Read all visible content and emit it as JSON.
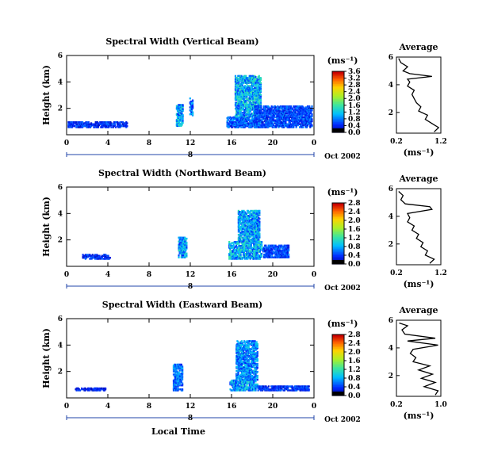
{
  "xlabel": "Local Time",
  "date_label": "Oct 2002",
  "colorbar_unit": "(ms⁻¹)",
  "avg_title": "Average",
  "avg_xlabel": "(ms⁻¹)",
  "chart_data": [
    {
      "type": "heatmap",
      "title": "Spectral Width (Vertical Beam)",
      "xlabel": "",
      "ylabel": "Height (km)",
      "xlim": [
        0,
        24
      ],
      "ylim": [
        0,
        6
      ],
      "x_ticks": [
        "0",
        "4",
        "8",
        "12",
        "16",
        "20",
        "0"
      ],
      "y_ticks": [
        "2",
        "4",
        "6"
      ],
      "day_label": "8",
      "colorbar": {
        "ticks": [
          "0.0",
          "0.4",
          "0.8",
          "1.2",
          "1.6",
          "2.0",
          "2.4",
          "2.8",
          "3.2",
          "3.6"
        ],
        "range": [
          0,
          3.6
        ]
      },
      "average_profile": {
        "xlim": [
          0.2,
          1.2
        ],
        "ylim": [
          0.5,
          6
        ],
        "x_ticks": [
          "0.2",
          "1.2"
        ],
        "y_ticks": [
          "2",
          "4",
          "6"
        ],
        "points": [
          [
            1.05,
            0.6
          ],
          [
            1.15,
            0.9
          ],
          [
            1.0,
            1.2
          ],
          [
            0.85,
            1.5
          ],
          [
            0.9,
            1.8
          ],
          [
            0.7,
            2.1
          ],
          [
            0.75,
            2.4
          ],
          [
            0.65,
            2.7
          ],
          [
            0.6,
            3.0
          ],
          [
            0.55,
            3.3
          ],
          [
            0.6,
            3.6
          ],
          [
            0.45,
            3.9
          ],
          [
            0.5,
            4.2
          ],
          [
            0.45,
            4.4
          ],
          [
            1.0,
            4.6
          ],
          [
            0.5,
            4.8
          ],
          [
            0.35,
            5.0
          ],
          [
            0.45,
            5.3
          ],
          [
            0.3,
            5.6
          ],
          [
            0.25,
            5.9
          ]
        ]
      },
      "echo_regions": [
        {
          "t": [
            0.1,
            5.8
          ],
          "h": [
            0.5,
            0.9
          ],
          "level": 0.5
        },
        {
          "t": [
            10.6,
            11.2
          ],
          "h": [
            0.6,
            2.2
          ],
          "level": 1.0
        },
        {
          "t": [
            11.9,
            12.2
          ],
          "h": [
            1.4,
            2.7
          ],
          "level": 0.8
        },
        {
          "t": [
            15.5,
            18.7
          ],
          "h": [
            0.5,
            1.3
          ],
          "level": 0.7
        },
        {
          "t": [
            16.3,
            18.8
          ],
          "h": [
            1.3,
            4.4
          ],
          "level": 1.1
        },
        {
          "t": [
            18.2,
            23.8
          ],
          "h": [
            0.5,
            2.1
          ],
          "level": 0.6
        }
      ]
    },
    {
      "type": "heatmap",
      "title": "Spectral Width (Northward Beam)",
      "xlabel": "",
      "ylabel": "Height (km)",
      "xlim": [
        0,
        24
      ],
      "ylim": [
        0,
        6
      ],
      "x_ticks": [
        "0",
        "4",
        "8",
        "12",
        "16",
        "20",
        "0"
      ],
      "y_ticks": [
        "2",
        "4",
        "6"
      ],
      "day_label": "8",
      "colorbar": {
        "ticks": [
          "0.0",
          "0.4",
          "0.8",
          "1.2",
          "1.6",
          "2.0",
          "2.4",
          "2.8"
        ],
        "range": [
          0,
          2.8
        ]
      },
      "average_profile": {
        "xlim": [
          0.2,
          1.2
        ],
        "ylim": [
          0.5,
          6
        ],
        "x_ticks": [
          "0.2",
          "1.2"
        ],
        "y_ticks": [
          "2",
          "4",
          "6"
        ],
        "points": [
          [
            0.95,
            0.6
          ],
          [
            1.05,
            0.9
          ],
          [
            0.85,
            1.2
          ],
          [
            0.9,
            1.5
          ],
          [
            0.75,
            1.8
          ],
          [
            0.8,
            2.1
          ],
          [
            0.65,
            2.4
          ],
          [
            0.7,
            2.7
          ],
          [
            0.55,
            3.0
          ],
          [
            0.6,
            3.3
          ],
          [
            0.45,
            3.6
          ],
          [
            0.5,
            3.9
          ],
          [
            0.45,
            4.2
          ],
          [
            1.0,
            4.5
          ],
          [
            0.95,
            4.7
          ],
          [
            0.4,
            4.9
          ],
          [
            0.3,
            5.2
          ],
          [
            0.35,
            5.5
          ],
          [
            0.25,
            5.8
          ]
        ]
      },
      "echo_regions": [
        {
          "t": [
            1.5,
            4.2
          ],
          "h": [
            0.5,
            0.8
          ],
          "level": 0.5
        },
        {
          "t": [
            10.8,
            11.6
          ],
          "h": [
            0.6,
            2.1
          ],
          "level": 1.0
        },
        {
          "t": [
            15.7,
            18.9
          ],
          "h": [
            0.5,
            1.8
          ],
          "level": 1.1
        },
        {
          "t": [
            16.6,
            18.7
          ],
          "h": [
            1.8,
            4.2
          ],
          "level": 1.0
        },
        {
          "t": [
            19.0,
            21.5
          ],
          "h": [
            0.6,
            1.5
          ],
          "level": 0.6
        }
      ]
    },
    {
      "type": "heatmap",
      "title": "Spectral Width (Eastward Beam)",
      "xlabel": "Local Time",
      "ylabel": "Height (km)",
      "xlim": [
        0,
        24
      ],
      "ylim": [
        0,
        6
      ],
      "x_ticks": [
        "0",
        "4",
        "8",
        "12",
        "16",
        "20",
        "0"
      ],
      "y_ticks": [
        "2",
        "4",
        "6"
      ],
      "day_label": "8",
      "colorbar": {
        "ticks": [
          "0.0",
          "0.4",
          "0.8",
          "1.2",
          "1.6",
          "2.0",
          "2.4",
          "2.8"
        ],
        "range": [
          0,
          2.8
        ]
      },
      "average_profile": {
        "xlim": [
          0.2,
          1.0
        ],
        "ylim": [
          0.5,
          6
        ],
        "x_ticks": [
          "0.2",
          "1.0"
        ],
        "y_ticks": [
          "2",
          "4",
          "6"
        ],
        "points": [
          [
            0.9,
            0.6
          ],
          [
            0.95,
            0.9
          ],
          [
            0.7,
            1.2
          ],
          [
            0.9,
            1.5
          ],
          [
            0.65,
            1.8
          ],
          [
            0.85,
            2.1
          ],
          [
            0.6,
            2.4
          ],
          [
            0.8,
            2.7
          ],
          [
            0.5,
            3.0
          ],
          [
            0.55,
            3.3
          ],
          [
            0.45,
            3.6
          ],
          [
            0.5,
            3.9
          ],
          [
            0.95,
            4.2
          ],
          [
            0.4,
            4.5
          ],
          [
            0.9,
            4.7
          ],
          [
            0.35,
            5.0
          ],
          [
            0.3,
            5.3
          ],
          [
            0.4,
            5.6
          ],
          [
            0.25,
            5.8
          ]
        ]
      },
      "echo_regions": [
        {
          "t": [
            0.8,
            3.8
          ],
          "h": [
            0.5,
            0.7
          ],
          "level": 0.4
        },
        {
          "t": [
            10.3,
            11.2
          ],
          "h": [
            0.5,
            2.5
          ],
          "level": 0.8
        },
        {
          "t": [
            15.8,
            18.5
          ],
          "h": [
            0.5,
            1.3
          ],
          "level": 1.0
        },
        {
          "t": [
            16.4,
            18.5
          ],
          "h": [
            1.3,
            4.3
          ],
          "level": 0.9
        },
        {
          "t": [
            18.5,
            23.5
          ],
          "h": [
            0.5,
            0.8
          ],
          "level": 0.5
        }
      ]
    }
  ]
}
